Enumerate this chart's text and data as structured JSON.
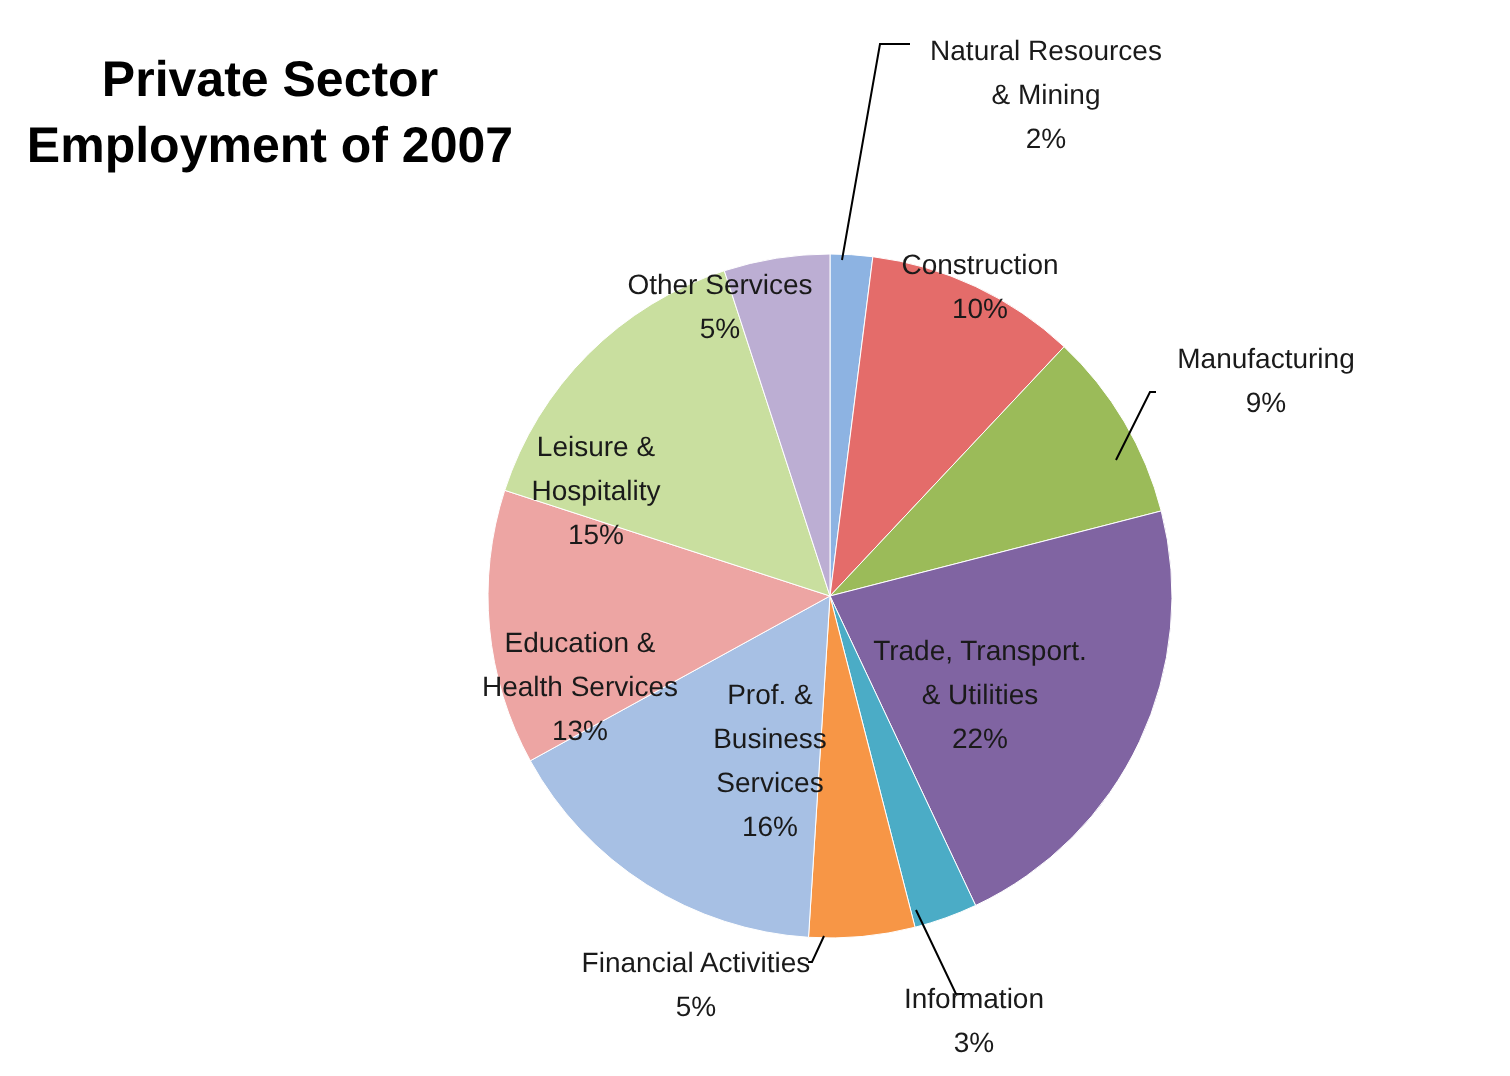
{
  "chart_data": {
    "type": "pie",
    "title": "Private Sector Employment of 2007",
    "categories": [
      "Natural Resources & Mining",
      "Construction",
      "Manufacturing",
      "Trade, Transport. & Utilities",
      "Information",
      "Financial Activities",
      "Prof. & Business Services",
      "Education & Health Services",
      "Leisure & Hospitality",
      "Other Services"
    ],
    "values": [
      2,
      10,
      9,
      22,
      3,
      5,
      16,
      13,
      15,
      5
    ],
    "colors": [
      "#8db3e2",
      "#e46c6a",
      "#9bbb59",
      "#8064a2",
      "#4bacc6",
      "#f79646",
      "#a7c0e4",
      "#eda5a3",
      "#c9df9f",
      "#bcaed3"
    ],
    "value_labels": [
      "2%",
      "10%",
      "9%",
      "22%",
      "3%",
      "5%",
      "16%",
      "13%",
      "15%",
      "5%"
    ]
  }
}
